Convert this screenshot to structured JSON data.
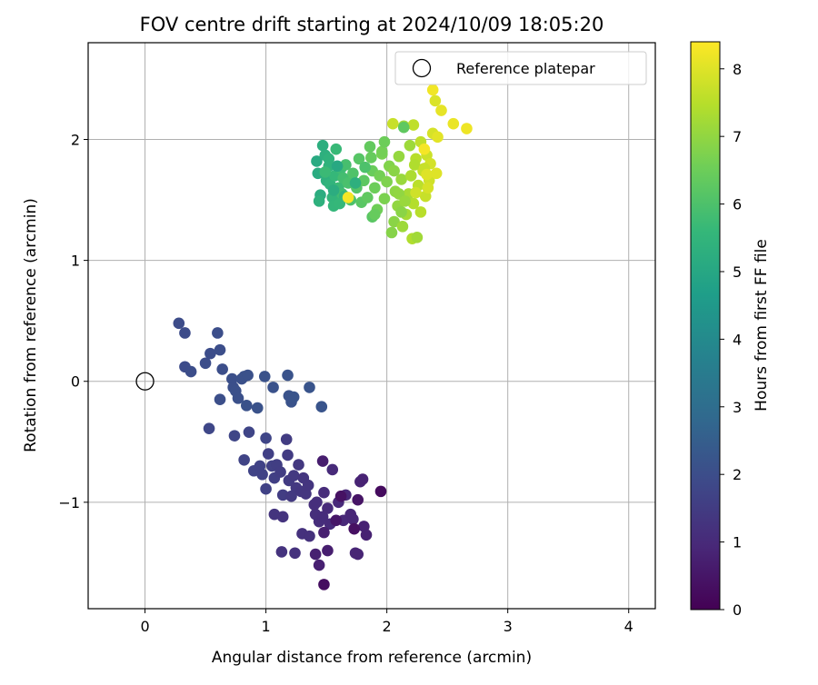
{
  "chart_data": {
    "type": "scatter",
    "title": "FOV centre drift starting at 2024/10/09 18:05:20",
    "xlabel": "Angular distance from reference (arcmin)",
    "ylabel": "Rotation from reference (arcmin)",
    "xlim": [
      -0.47,
      4.22
    ],
    "ylim": [
      -1.88,
      2.8
    ],
    "xticks": [
      0,
      1,
      2,
      3,
      4
    ],
    "yticks": [
      -1,
      0,
      1,
      2
    ],
    "ytick_labels": [
      "−1",
      "0",
      "1",
      "2"
    ],
    "grid": true,
    "legend": {
      "label": "Reference platepar",
      "placement": "top-right"
    },
    "reference_point": {
      "x": 0,
      "y": 0
    },
    "colorbar": {
      "label": "Hours from first FF file",
      "colormap": "viridis",
      "range": [
        0,
        8.4
      ],
      "ticks": [
        0,
        1,
        2,
        3,
        4,
        5,
        6,
        7,
        8
      ],
      "stops": [
        "#440154",
        "#482878",
        "#3e4989",
        "#31688e",
        "#26828e",
        "#1f9e89",
        "#35b779",
        "#6ece58",
        "#b5de2b",
        "#fde725"
      ]
    },
    "points": [
      [
        0.28,
        0.48,
        1.95
      ],
      [
        0.33,
        0.4,
        1.96
      ],
      [
        0.33,
        0.12,
        1.97
      ],
      [
        0.38,
        0.08,
        1.98
      ],
      [
        0.5,
        0.15,
        1.99
      ],
      [
        0.54,
        0.23,
        2.0
      ],
      [
        0.6,
        0.4,
        2.01
      ],
      [
        0.62,
        0.26,
        2.02
      ],
      [
        0.64,
        0.1,
        2.03
      ],
      [
        0.62,
        -0.15,
        2.04
      ],
      [
        0.72,
        0.02,
        2.05
      ],
      [
        0.73,
        -0.05,
        2.06
      ],
      [
        0.75,
        -0.08,
        2.07
      ],
      [
        0.77,
        -0.14,
        2.08
      ],
      [
        0.8,
        0.02,
        2.09
      ],
      [
        0.82,
        0.04,
        2.1
      ],
      [
        0.85,
        0.05,
        2.11
      ],
      [
        0.84,
        -0.2,
        2.12
      ],
      [
        0.93,
        -0.22,
        2.13
      ],
      [
        0.99,
        0.04,
        2.14
      ],
      [
        1.06,
        -0.05,
        2.15
      ],
      [
        1.18,
        0.05,
        2.16
      ],
      [
        1.19,
        -0.12,
        2.17
      ],
      [
        1.21,
        -0.17,
        2.18
      ],
      [
        1.23,
        -0.13,
        2.19
      ],
      [
        1.36,
        -0.05,
        2.2
      ],
      [
        1.46,
        -0.21,
        2.21
      ],
      [
        0.53,
        -0.39,
        1.8
      ],
      [
        0.74,
        -0.45,
        1.78
      ],
      [
        0.86,
        -0.42,
        1.76
      ],
      [
        1.0,
        -0.47,
        1.74
      ],
      [
        0.82,
        -0.65,
        1.72
      ],
      [
        0.9,
        -0.74,
        1.7
      ],
      [
        0.95,
        -0.7,
        1.68
      ],
      [
        0.97,
        -0.77,
        1.66
      ],
      [
        1.0,
        -0.89,
        1.64
      ],
      [
        1.02,
        -0.6,
        1.62
      ],
      [
        1.05,
        -0.7,
        1.6
      ],
      [
        1.07,
        -0.8,
        1.58
      ],
      [
        1.09,
        -0.69,
        1.56
      ],
      [
        1.12,
        -0.75,
        1.54
      ],
      [
        1.14,
        -0.94,
        1.52
      ],
      [
        1.17,
        -0.48,
        1.5
      ],
      [
        1.18,
        -0.61,
        1.48
      ],
      [
        1.19,
        -0.82,
        1.46
      ],
      [
        1.21,
        -0.95,
        1.44
      ],
      [
        1.23,
        -0.78,
        1.42
      ],
      [
        1.25,
        -0.88,
        1.4
      ],
      [
        1.27,
        -0.69,
        1.38
      ],
      [
        1.29,
        -0.91,
        1.36
      ],
      [
        1.31,
        -0.8,
        1.34
      ],
      [
        1.33,
        -0.93,
        1.32
      ],
      [
        1.35,
        -0.86,
        1.3
      ],
      [
        1.07,
        -1.1,
        1.28
      ],
      [
        1.14,
        -1.12,
        1.26
      ],
      [
        1.13,
        -1.41,
        1.24
      ],
      [
        1.24,
        -1.42,
        1.22
      ],
      [
        1.3,
        -1.26,
        1.2
      ],
      [
        1.36,
        -1.28,
        1.18
      ],
      [
        1.4,
        -1.02,
        1.16
      ],
      [
        1.42,
        -1.0,
        1.14
      ],
      [
        1.41,
        -1.1,
        1.12
      ],
      [
        1.44,
        -1.16,
        1.1
      ],
      [
        1.47,
        -1.12,
        1.08
      ],
      [
        1.48,
        -0.92,
        1.06
      ],
      [
        1.51,
        -1.05,
        1.04
      ],
      [
        1.53,
        -1.18,
        1.02
      ],
      [
        1.55,
        -0.73,
        1.0
      ],
      [
        1.6,
        -1.0,
        0.98
      ],
      [
        1.64,
        -1.15,
        0.96
      ],
      [
        1.66,
        -0.94,
        0.94
      ],
      [
        1.7,
        -1.1,
        0.92
      ],
      [
        1.72,
        -1.14,
        0.9
      ],
      [
        1.74,
        -1.42,
        0.88
      ],
      [
        1.76,
        -1.43,
        0.86
      ],
      [
        1.78,
        -0.83,
        0.84
      ],
      [
        1.8,
        -0.81,
        0.82
      ],
      [
        1.81,
        -1.2,
        0.8
      ],
      [
        1.83,
        -1.27,
        0.78
      ],
      [
        1.41,
        -1.43,
        0.76
      ],
      [
        1.44,
        -1.52,
        0.74
      ],
      [
        1.48,
        -1.25,
        0.72
      ],
      [
        1.51,
        -1.4,
        0.7
      ],
      [
        1.47,
        -0.66,
        0.68
      ],
      [
        1.48,
        -1.68,
        0.3
      ],
      [
        1.62,
        -0.95,
        0.4
      ],
      [
        1.73,
        -1.22,
        0.35
      ],
      [
        1.95,
        -0.91,
        0.25
      ],
      [
        1.76,
        -0.98,
        0.45
      ],
      [
        1.58,
        -1.15,
        0.5
      ],
      [
        1.42,
        1.82,
        5.1
      ],
      [
        1.43,
        1.72,
        5.15
      ],
      [
        1.45,
        1.54,
        5.2
      ],
      [
        1.47,
        1.95,
        5.25
      ],
      [
        1.49,
        1.87,
        5.3
      ],
      [
        1.5,
        1.66,
        5.35
      ],
      [
        1.52,
        1.78,
        5.4
      ],
      [
        1.53,
        1.63,
        5.45
      ],
      [
        1.55,
        1.52,
        5.5
      ],
      [
        1.56,
        1.45,
        5.55
      ],
      [
        1.57,
        1.7,
        5.6
      ],
      [
        1.58,
        1.92,
        5.65
      ],
      [
        1.6,
        1.6,
        5.7
      ],
      [
        1.62,
        1.76,
        5.75
      ],
      [
        1.63,
        1.55,
        5.8
      ],
      [
        1.64,
        1.68,
        5.85
      ],
      [
        1.66,
        1.79,
        5.9
      ],
      [
        1.68,
        1.64,
        5.95
      ],
      [
        1.7,
        1.5,
        6.0
      ],
      [
        1.72,
        1.72,
        6.05
      ],
      [
        1.75,
        1.6,
        6.1
      ],
      [
        1.77,
        1.84,
        6.15
      ],
      [
        1.79,
        1.48,
        6.2
      ],
      [
        1.81,
        1.66,
        6.25
      ],
      [
        1.84,
        1.52,
        6.3
      ],
      [
        1.86,
        1.94,
        6.35
      ],
      [
        1.87,
        1.85,
        6.4
      ],
      [
        1.88,
        1.74,
        6.45
      ],
      [
        1.9,
        1.6,
        6.5
      ],
      [
        1.92,
        1.42,
        6.55
      ],
      [
        1.94,
        1.7,
        6.6
      ],
      [
        1.96,
        1.88,
        6.65
      ],
      [
        1.98,
        1.51,
        6.7
      ],
      [
        2.0,
        1.65,
        6.75
      ],
      [
        2.02,
        1.78,
        6.8
      ],
      [
        2.04,
        1.23,
        6.85
      ],
      [
        2.06,
        1.32,
        6.9
      ],
      [
        2.07,
        1.57,
        6.95
      ],
      [
        2.09,
        1.45,
        7.0
      ],
      [
        2.1,
        1.86,
        7.05
      ],
      [
        2.12,
        1.67,
        7.1
      ],
      [
        2.13,
        1.28,
        7.15
      ],
      [
        2.14,
        2.11,
        7.2
      ],
      [
        2.16,
        1.38,
        7.25
      ],
      [
        2.18,
        1.55,
        7.3
      ],
      [
        2.2,
        1.7,
        7.35
      ],
      [
        2.21,
        1.18,
        7.4
      ],
      [
        2.22,
        1.47,
        7.45
      ],
      [
        2.24,
        1.84,
        7.5
      ],
      [
        2.26,
        1.62,
        7.55
      ],
      [
        2.28,
        1.98,
        7.6
      ],
      [
        2.3,
        1.74,
        7.65
      ],
      [
        2.32,
        1.53,
        7.7
      ],
      [
        2.33,
        1.87,
        7.75
      ],
      [
        2.35,
        1.66,
        7.8
      ],
      [
        2.36,
        1.8,
        7.85
      ],
      [
        2.38,
        2.05,
        7.9
      ],
      [
        2.4,
        2.32,
        7.95
      ],
      [
        2.41,
        1.72,
        8.0
      ],
      [
        2.42,
        2.02,
        8.05
      ],
      [
        2.45,
        2.24,
        8.1
      ],
      [
        2.55,
        2.13,
        8.15
      ],
      [
        2.66,
        2.09,
        8.2
      ],
      [
        2.38,
        2.41,
        8.25
      ],
      [
        2.31,
        1.92,
        8.3
      ],
      [
        2.22,
        2.12,
        7.6
      ],
      [
        2.19,
        1.95,
        7.15
      ],
      [
        2.28,
        1.4,
        7.5
      ],
      [
        2.05,
        2.13,
        7.7
      ],
      [
        2.34,
        1.6,
        7.9
      ],
      [
        1.74,
        1.64,
        5.3
      ],
      [
        1.59,
        1.78,
        5.05
      ],
      [
        1.65,
        1.53,
        5.5
      ],
      [
        1.56,
        1.58,
        5.2
      ],
      [
        1.44,
        1.49,
        5.35
      ],
      [
        1.52,
        1.84,
        5.4
      ],
      [
        1.61,
        1.47,
        5.6
      ],
      [
        1.49,
        1.73,
        5.7
      ],
      [
        1.88,
        1.36,
        6.2
      ],
      [
        1.9,
        1.38,
        6.4
      ],
      [
        1.96,
        1.9,
        6.6
      ],
      [
        1.82,
        1.77,
        6.0
      ],
      [
        2.06,
        1.74,
        6.9
      ],
      [
        2.1,
        1.55,
        7.0
      ],
      [
        2.15,
        1.49,
        7.1
      ],
      [
        2.23,
        1.79,
        7.4
      ],
      [
        2.31,
        1.76,
        7.7
      ],
      [
        2.24,
        1.56,
        7.8
      ],
      [
        2.33,
        1.71,
        8.0
      ],
      [
        2.14,
        2.1,
        6.3
      ],
      [
        1.68,
        1.52,
        8.3
      ],
      [
        2.25,
        1.19,
        7.2
      ],
      [
        2.12,
        1.4,
        6.9
      ],
      [
        1.98,
        1.98,
        6.5
      ]
    ]
  }
}
